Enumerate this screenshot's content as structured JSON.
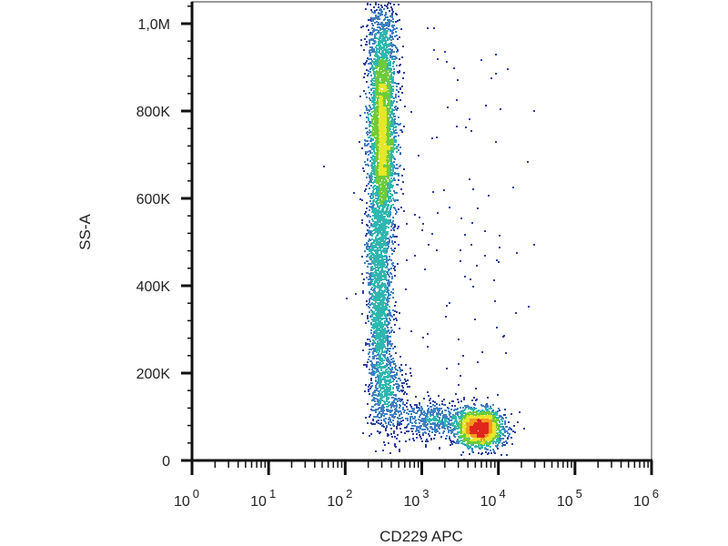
{
  "chart_data": {
    "type": "scatter",
    "title": "",
    "xlabel": "CD229 APC",
    "ylabel": "SS-A",
    "x_scale": "log",
    "xlim": [
      1,
      1000000
    ],
    "ylim": [
      0,
      1050000
    ],
    "x_ticks": [
      {
        "value": 1,
        "base": "10",
        "exp": "0"
      },
      {
        "value": 10,
        "base": "10",
        "exp": "1"
      },
      {
        "value": 100,
        "base": "10",
        "exp": "2"
      },
      {
        "value": 1000,
        "base": "10",
        "exp": "3"
      },
      {
        "value": 10000,
        "base": "10",
        "exp": "4"
      },
      {
        "value": 100000,
        "base": "10",
        "exp": "5"
      },
      {
        "value": 1000000,
        "base": "10",
        "exp": "6"
      }
    ],
    "y_ticks": [
      {
        "value": 0,
        "label": "0"
      },
      {
        "value": 200000,
        "label": "200K"
      },
      {
        "value": 400000,
        "label": "400K"
      },
      {
        "value": 600000,
        "label": "600K"
      },
      {
        "value": 800000,
        "label": "800K"
      },
      {
        "value": 1000000,
        "label": "1,0M"
      }
    ],
    "grid": false,
    "colormap": [
      "#2c3fa0",
      "#3f7fc4",
      "#2fb7b0",
      "#6ecb3c",
      "#e6e62a",
      "#f39a1d",
      "#e0261b"
    ],
    "populations": [
      {
        "x": 300,
        "y": 720000,
        "x_spread_log": 0.09,
        "y_spread": 120000,
        "count": 2600
      },
      {
        "x": 300,
        "y": 920000,
        "x_spread_log": 0.1,
        "y_spread": 90000,
        "count": 900
      },
      {
        "x": 280,
        "y": 330000,
        "x_spread_log": 0.08,
        "y_spread": 90000,
        "count": 1100
      },
      {
        "x": 260,
        "y": 480000,
        "x_spread_log": 0.08,
        "y_spread": 60000,
        "count": 400
      },
      {
        "x": 350,
        "y": 150000,
        "x_spread_log": 0.12,
        "y_spread": 50000,
        "count": 500
      },
      {
        "x": 5500,
        "y": 75000,
        "x_spread_log": 0.16,
        "y_spread": 22000,
        "count": 1600
      },
      {
        "x": 1400,
        "y": 95000,
        "x_spread_log": 0.25,
        "y_spread": 22000,
        "count": 500
      },
      {
        "x": 3000,
        "y": 400000,
        "x_spread_log": 0.6,
        "y_spread": 300000,
        "count": 120
      }
    ]
  }
}
